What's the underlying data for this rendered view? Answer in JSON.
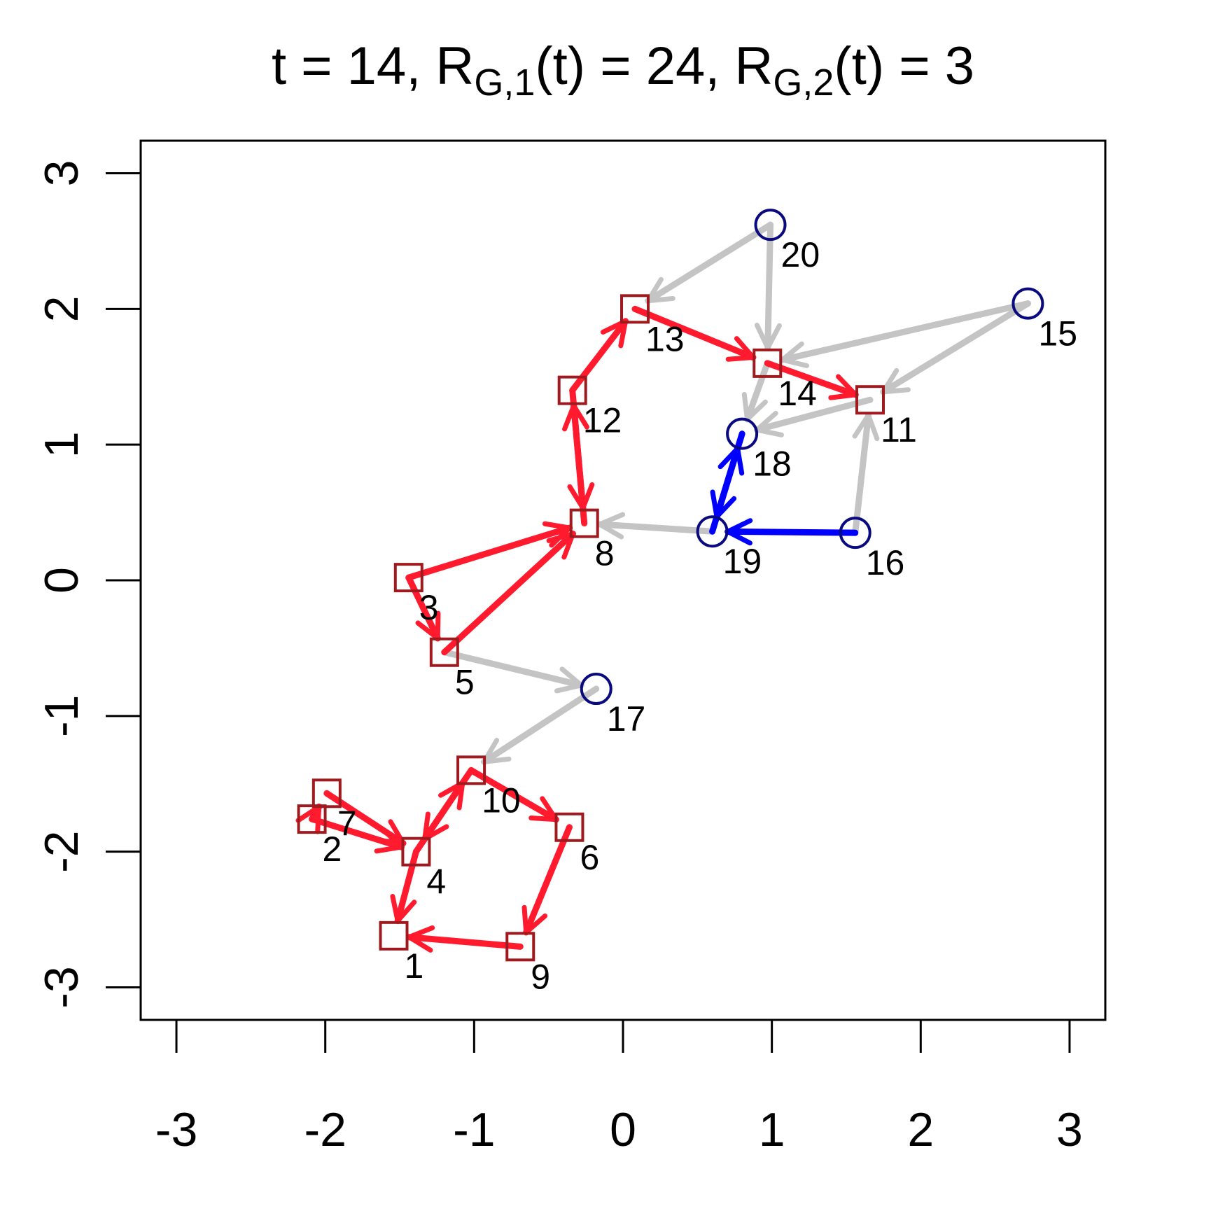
{
  "chart_data": {
    "type": "network",
    "title": [
      {
        "text": "t = 14, R"
      },
      {
        "text": "G,1",
        "sub": true
      },
      {
        "text": "(t) = 24, R"
      },
      {
        "text": "G,2",
        "sub": true
      },
      {
        "text": "(t) = 3"
      }
    ],
    "xlim": [
      -3.24,
      3.24
    ],
    "ylim": [
      -3.24,
      3.24
    ],
    "xticks": [
      -3,
      -2,
      -1,
      0,
      1,
      2,
      3
    ],
    "yticks": [
      -3,
      -2,
      -1,
      0,
      1,
      2,
      3
    ],
    "node_styles": {
      "square": {
        "color": "#9e1a1f"
      },
      "circle": {
        "color": "#0a0a80"
      }
    },
    "nodes": [
      {
        "label": "1",
        "x": -1.54,
        "y": -2.62,
        "shape": "square"
      },
      {
        "label": "2",
        "x": -2.09,
        "y": -1.76,
        "shape": "square"
      },
      {
        "label": "3",
        "x": -1.44,
        "y": 0.02,
        "shape": "square"
      },
      {
        "label": "4",
        "x": -1.39,
        "y": -2.0,
        "shape": "square"
      },
      {
        "label": "5",
        "x": -1.2,
        "y": -0.53,
        "shape": "square"
      },
      {
        "label": "6",
        "x": -0.36,
        "y": -1.82,
        "shape": "square"
      },
      {
        "label": "7",
        "x": -1.99,
        "y": -1.57,
        "shape": "square"
      },
      {
        "label": "8",
        "x": -0.26,
        "y": 0.42,
        "shape": "square"
      },
      {
        "label": "9",
        "x": -0.69,
        "y": -2.7,
        "shape": "square"
      },
      {
        "label": "10",
        "x": -1.02,
        "y": -1.4,
        "shape": "square"
      },
      {
        "label": "11",
        "x": 1.66,
        "y": 1.33,
        "shape": "square"
      },
      {
        "label": "12",
        "x": -0.34,
        "y": 1.4,
        "shape": "square"
      },
      {
        "label": "13",
        "x": 0.08,
        "y": 2.0,
        "shape": "square"
      },
      {
        "label": "14",
        "x": 0.97,
        "y": 1.6,
        "shape": "square"
      },
      {
        "label": "15",
        "x": 2.72,
        "y": 2.04,
        "shape": "circle"
      },
      {
        "label": "16",
        "x": 1.56,
        "y": 0.35,
        "shape": "circle"
      },
      {
        "label": "17",
        "x": -0.18,
        "y": -0.8,
        "shape": "circle"
      },
      {
        "label": "18",
        "x": 0.8,
        "y": 1.08,
        "shape": "circle"
      },
      {
        "label": "19",
        "x": 0.6,
        "y": 0.36,
        "shape": "circle"
      },
      {
        "label": "20",
        "x": 0.99,
        "y": 2.62,
        "shape": "circle"
      }
    ],
    "edges": [
      {
        "from": 20,
        "to": 13,
        "color": "#c4c4c4"
      },
      {
        "from": 20,
        "to": 14,
        "color": "#c4c4c4"
      },
      {
        "from": 15,
        "to": 14,
        "color": "#c4c4c4"
      },
      {
        "from": 15,
        "to": 11,
        "color": "#c4c4c4"
      },
      {
        "from": 11,
        "to": 18,
        "color": "#c4c4c4"
      },
      {
        "from": 14,
        "to": 18,
        "color": "#c4c4c4"
      },
      {
        "from": 16,
        "to": 11,
        "color": "#c4c4c4"
      },
      {
        "from": 19,
        "to": 8,
        "color": "#c4c4c4"
      },
      {
        "from": 5,
        "to": 17,
        "color": "#c4c4c4"
      },
      {
        "from": 17,
        "to": 10,
        "color": "#c4c4c4"
      },
      {
        "from": 3,
        "to": 5,
        "color": "#ff1a2e"
      },
      {
        "from": 5,
        "to": 8,
        "color": "#ff1a2e"
      },
      {
        "from": 3,
        "to": 8,
        "color": "#ff1a2e"
      },
      {
        "from": 8,
        "to": 12,
        "color": "#ff1a2e"
      },
      {
        "from": 12,
        "to": 8,
        "color": "#ff1a2e"
      },
      {
        "from": 12,
        "to": 13,
        "color": "#ff1a2e"
      },
      {
        "from": 13,
        "to": 14,
        "color": "#ff1a2e"
      },
      {
        "from": 14,
        "to": 11,
        "color": "#ff1a2e"
      },
      {
        "from": 10,
        "to": 6,
        "color": "#ff1a2e"
      },
      {
        "from": 6,
        "to": 9,
        "color": "#ff1a2e"
      },
      {
        "from": 9,
        "to": 1,
        "color": "#ff1a2e"
      },
      {
        "from": 4,
        "to": 1,
        "color": "#ff1a2e"
      },
      {
        "from": 4,
        "to": 10,
        "color": "#ff1a2e"
      },
      {
        "from": 10,
        "to": 4,
        "color": "#ff1a2e"
      },
      {
        "from": 7,
        "to": 4,
        "color": "#ff1a2e"
      },
      {
        "from": 2,
        "to": 4,
        "color": "#ff1a2e"
      },
      {
        "from": 2,
        "to": 7,
        "color": "#ff1a2e"
      },
      {
        "from": 16,
        "to": 19,
        "color": "#0000ff"
      },
      {
        "from": 19,
        "to": 18,
        "color": "#0000ff"
      },
      {
        "from": 18,
        "to": 19,
        "color": "#0000ff"
      }
    ]
  }
}
